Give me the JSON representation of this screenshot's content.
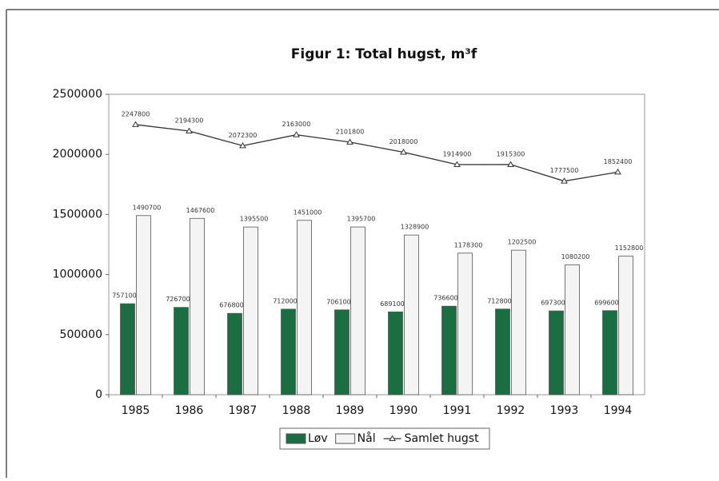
{
  "chart_data": {
    "type": "bar",
    "title": "Figur 1: Total hugst, m³f",
    "categories": [
      "1985",
      "1986",
      "1987",
      "1988",
      "1989",
      "1990",
      "1991",
      "1992",
      "1993",
      "1994"
    ],
    "series": [
      {
        "name": "Løv",
        "color": "#1b6e41",
        "type": "bar",
        "values": [
          757100,
          726700,
          676800,
          712000,
          706100,
          689100,
          736600,
          712800,
          697300,
          699600
        ]
      },
      {
        "name": "Nål",
        "color": "#f4f4f4",
        "type": "bar",
        "values": [
          1490700,
          1467600,
          1395500,
          1451000,
          1395700,
          1328900,
          1178300,
          1202500,
          1080200,
          1152800
        ]
      },
      {
        "name": "Samlet hugst",
        "color": "#333333",
        "type": "line",
        "values": [
          2247800,
          2194300,
          2072300,
          2163000,
          2101800,
          2018000,
          1914900,
          1915300,
          1777500,
          1852400
        ]
      }
    ],
    "ylim": [
      0,
      2500000
    ],
    "yticks": [
      0,
      500000,
      1000000,
      1500000,
      2000000,
      2500000
    ],
    "grid": false,
    "legend": "bottom"
  }
}
